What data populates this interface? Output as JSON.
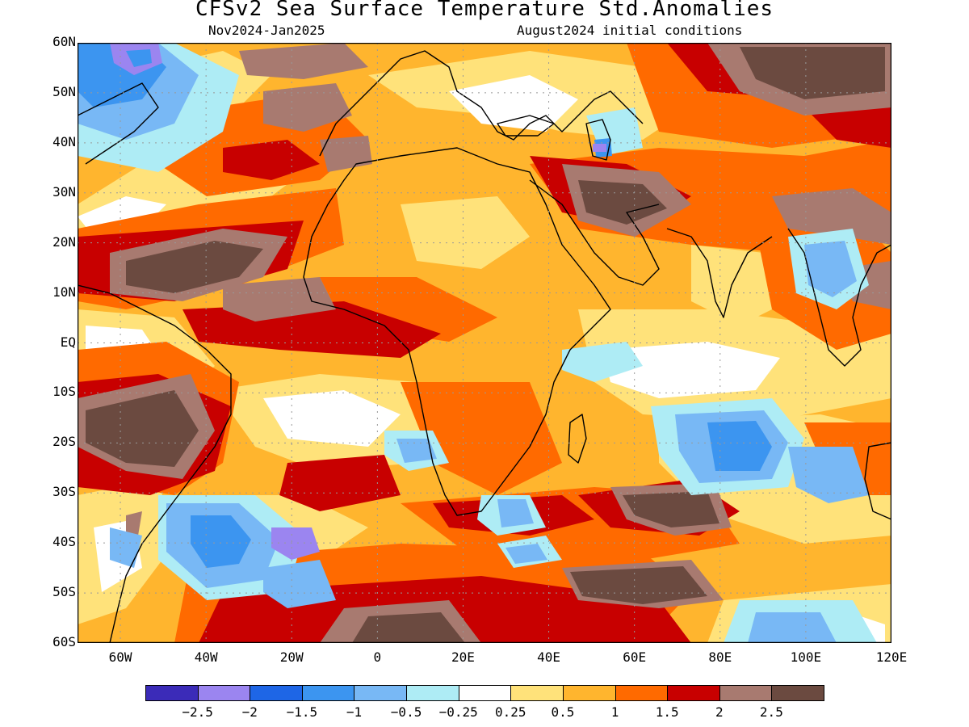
{
  "title": "CFSv2 Sea Surface Temperature Std.Anomalies",
  "subtitle_left": "Nov2024-Jan2025",
  "subtitle_right": "August2024 initial conditions",
  "lat_labels": [
    "60N",
    "50N",
    "40N",
    "30N",
    "20N",
    "10N",
    "EQ",
    "10S",
    "20S",
    "30S",
    "40S",
    "50S",
    "60S"
  ],
  "lon_labels": [
    "60W",
    "40W",
    "20W",
    "0",
    "20E",
    "40E",
    "60E",
    "80E",
    "100E",
    "120E"
  ],
  "colorbar": {
    "colors": [
      "#3b2bb8",
      "#9b85f0",
      "#1e66e6",
      "#3c95f0",
      "#78b8f5",
      "#aeecf5",
      "#ffffff",
      "#ffe27a",
      "#ffb52e",
      "#ff6a00",
      "#c80000",
      "#a87a70",
      "#6b4a40"
    ],
    "labels": [
      "−2.5",
      "−2",
      "−1.5",
      "−1",
      "−0.5",
      "−0.25",
      "0.25",
      "0.5",
      "1",
      "1.5",
      "2",
      "2.5"
    ]
  },
  "map_data": {
    "projection": "equirectangular",
    "lon_range": [
      -70,
      120
    ],
    "lat_range": [
      -60,
      60
    ],
    "variable": "sea surface temperature standardized anomaly"
  }
}
